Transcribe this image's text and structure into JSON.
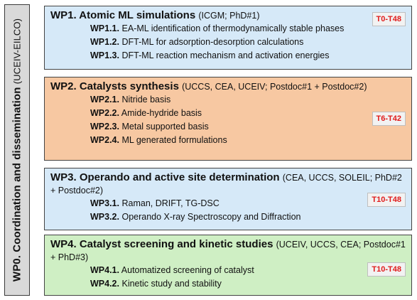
{
  "wp0": {
    "label": "WP0. Coordination and dissemination",
    "sub": "(UCEIV-EILCO)"
  },
  "wps": [
    {
      "title": "WP1. Atomic ML simulations",
      "org": "(ICGM; PhD#1)",
      "badge": "T0-T48",
      "items": [
        {
          "num": "WP1.1.",
          "text": "EA-ML identification of thermodynamically stable phases"
        },
        {
          "num": "WP1.2.",
          "text": "DFT-ML for adsorption-desorption calculations"
        },
        {
          "num": "WP1.3.",
          "text": "DFT-ML reaction mechanism and activation energies"
        }
      ]
    },
    {
      "title": "WP2. Catalysts synthesis",
      "org": "(UCCS, CEA, UCEIV; Postdoc#1 + Postdoc#2)",
      "badge": "T6-T42",
      "items": [
        {
          "num": "WP2.1.",
          "text": "Nitride basis"
        },
        {
          "num": "WP2.2.",
          "text": "Amide-hydride basis"
        },
        {
          "num": "WP2.3.",
          "text": "Metal supported basis"
        },
        {
          "num": "WP2.4.",
          "text": "ML generated formulations"
        }
      ]
    },
    {
      "title": "WP3. Operando and active site determination",
      "org": "(CEA, UCCS, SOLEIL; PhD#2 + Postdoc#2)",
      "badge": "T10-T48",
      "items": [
        {
          "num": "WP3.1.",
          "text": "Raman, DRIFT, TG-DSC"
        },
        {
          "num": "WP3.2.",
          "text": "Operando X-ray Spectroscopy and Diffraction"
        }
      ]
    },
    {
      "title": "WP4. Catalyst screening and kinetic studies",
      "org": "(UCEIV, UCCS, CEA; Postdoc#1 + PhD#3)",
      "badge": "T10-T48",
      "items": [
        {
          "num": "WP4.1.",
          "text": "Automatized screening of catalyst"
        },
        {
          "num": "WP4.2.",
          "text": "Kinetic study and stability"
        }
      ]
    }
  ]
}
